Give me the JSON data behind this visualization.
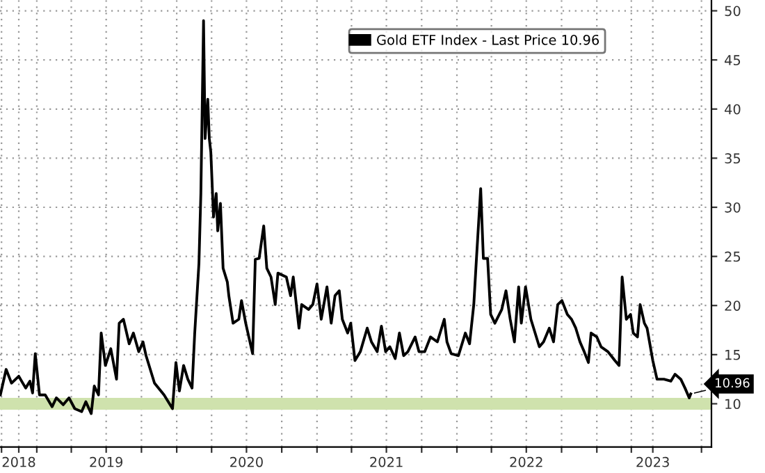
{
  "chart_data": {
    "type": "line",
    "x": [
      "2018-09-28",
      "2018-10-13",
      "2018-10-27",
      "2018-11-15",
      "2018-12-03",
      "2018-12-14",
      "2018-12-21",
      "2018-12-28",
      "2019-01-08",
      "2019-01-23",
      "2019-02-10",
      "2019-02-21",
      "2019-03-11",
      "2019-03-26",
      "2019-04-10",
      "2019-04-28",
      "2019-05-09",
      "2019-05-23",
      "2019-05-31",
      "2019-06-11",
      "2019-06-18",
      "2019-06-29",
      "2019-07-13",
      "2019-07-28",
      "2019-08-04",
      "2019-08-15",
      "2019-08-30",
      "2019-09-10",
      "2019-09-24",
      "2019-10-05",
      "2019-10-13",
      "2019-11-04",
      "2019-11-29",
      "2019-12-21",
      "2019-12-30",
      "2020-01-08",
      "2020-01-19",
      "2020-01-30",
      "2020-02-10",
      "2020-02-17",
      "2020-02-28",
      "2020-03-04",
      "2020-03-11",
      "2020-03-15",
      "2020-03-22",
      "2020-03-26",
      "2020-03-30",
      "2020-04-06",
      "2020-04-13",
      "2020-04-17",
      "2020-04-24",
      "2020-05-01",
      "2020-05-12",
      "2020-05-16",
      "2020-05-27",
      "2020-06-11",
      "2020-06-18",
      "2020-06-29",
      "2020-07-17",
      "2020-07-24",
      "2020-08-03",
      "2020-08-15",
      "2020-08-23",
      "2020-09-03",
      "2020-09-14",
      "2020-09-21",
      "2020-10-13",
      "2020-10-24",
      "2020-10-31",
      "2020-11-15",
      "2020-11-22",
      "2020-12-10",
      "2020-12-21",
      "2021-01-01",
      "2021-01-12",
      "2021-01-27",
      "2021-02-07",
      "2021-02-17",
      "2021-02-28",
      "2021-03-08",
      "2021-03-22",
      "2021-03-30",
      "2021-04-10",
      "2021-04-24",
      "2021-05-12",
      "2021-05-23",
      "2021-06-07",
      "2021-06-18",
      "2021-06-29",
      "2021-07-10",
      "2021-07-24",
      "2021-08-04",
      "2021-08-15",
      "2021-08-26",
      "2021-09-14",
      "2021-09-24",
      "2021-10-09",
      "2021-10-24",
      "2021-11-11",
      "2021-11-29",
      "2021-12-06",
      "2021-12-17",
      "2022-01-05",
      "2022-01-23",
      "2022-02-03",
      "2022-02-14",
      "2022-02-21",
      "2022-03-04",
      "2022-03-11",
      "2022-03-22",
      "2022-03-30",
      "2022-04-10",
      "2022-04-28",
      "2022-05-09",
      "2022-05-20",
      "2022-05-31",
      "2022-06-11",
      "2022-06-18",
      "2022-06-29",
      "2022-07-13",
      "2022-07-24",
      "2022-08-04",
      "2022-08-15",
      "2022-08-30",
      "2022-09-10",
      "2022-09-21",
      "2022-10-02",
      "2022-10-16",
      "2022-10-27",
      "2022-11-07",
      "2022-11-18",
      "2022-11-29",
      "2022-12-10",
      "2022-12-17",
      "2023-01-01",
      "2023-01-12",
      "2023-01-30",
      "2023-02-17",
      "2023-02-28",
      "2023-03-08",
      "2023-03-19",
      "2023-03-30",
      "2023-04-06",
      "2023-04-17",
      "2023-04-24",
      "2023-05-05",
      "2023-05-12",
      "2023-05-27",
      "2023-06-07",
      "2023-06-25",
      "2023-07-13",
      "2023-07-24",
      "2023-08-08",
      "2023-08-19",
      "2023-08-30",
      "2023-09-03"
    ],
    "series": [
      {
        "name": "Gold ETF Index - Last Price 10.96",
        "color": "#000000",
        "values": [
          10.9,
          13.5,
          12.1,
          12.8,
          11.6,
          12.3,
          11.1,
          15.1,
          10.9,
          10.9,
          9.7,
          10.6,
          9.9,
          10.6,
          9.5,
          9.2,
          10.2,
          9.0,
          11.8,
          10.9,
          17.2,
          13.9,
          15.6,
          12.5,
          18.2,
          18.6,
          16.1,
          17.2,
          15.3,
          16.3,
          14.9,
          12.1,
          10.9,
          9.5,
          14.2,
          11.3,
          13.9,
          12.5,
          11.6,
          17.2,
          24.3,
          31.4,
          49.0,
          37.0,
          41.0,
          37.0,
          35.6,
          29.0,
          31.4,
          27.6,
          30.4,
          23.8,
          22.4,
          21.0,
          18.2,
          18.6,
          20.5,
          18.2,
          15.1,
          24.7,
          24.8,
          28.1,
          23.8,
          22.9,
          20.1,
          23.3,
          22.9,
          21.0,
          22.9,
          17.7,
          20.1,
          19.6,
          20.1,
          22.2,
          18.6,
          21.9,
          18.2,
          21.0,
          21.5,
          18.6,
          17.2,
          18.2,
          14.4,
          15.3,
          17.7,
          16.3,
          15.3,
          17.9,
          15.3,
          15.8,
          14.6,
          17.2,
          14.9,
          15.3,
          16.8,
          15.3,
          15.3,
          16.8,
          16.3,
          18.6,
          16.3,
          15.1,
          14.9,
          17.2,
          16.1,
          20.1,
          24.8,
          31.9,
          24.8,
          24.8,
          19.1,
          18.2,
          19.6,
          21.5,
          18.6,
          16.3,
          21.9,
          18.2,
          21.9,
          18.6,
          17.2,
          15.8,
          16.3,
          17.7,
          16.3,
          20.1,
          20.5,
          19.1,
          18.6,
          17.7,
          16.3,
          15.3,
          14.2,
          17.2,
          16.8,
          15.8,
          15.3,
          14.4,
          13.9,
          22.9,
          18.6,
          19.1,
          17.2,
          16.8,
          20.1,
          18.2,
          17.7,
          14.4,
          12.5,
          12.5,
          12.3,
          13.0,
          12.5,
          11.6,
          10.6,
          11.0
        ]
      }
    ],
    "xlim": [
      "2018-09-27",
      "2023-10-27"
    ],
    "ylim": [
      5.6,
      51.1
    ],
    "xticks": [
      {
        "value": "2018-10-01",
        "label": null
      },
      {
        "value": "2018-11-15",
        "label": "2018"
      },
      {
        "value": "2019-01-01",
        "label": null
      },
      {
        "value": "2019-04-01",
        "label": null
      },
      {
        "value": "2019-07-01",
        "label": "2019"
      },
      {
        "value": "2019-10-01",
        "label": null
      },
      {
        "value": "2020-01-01",
        "label": null
      },
      {
        "value": "2020-04-01",
        "label": null
      },
      {
        "value": "2020-07-01",
        "label": "2020"
      },
      {
        "value": "2020-10-01",
        "label": null
      },
      {
        "value": "2021-01-01",
        "label": null
      },
      {
        "value": "2021-04-01",
        "label": null
      },
      {
        "value": "2021-07-01",
        "label": "2021"
      },
      {
        "value": "2021-10-01",
        "label": null
      },
      {
        "value": "2022-01-01",
        "label": null
      },
      {
        "value": "2022-04-01",
        "label": null
      },
      {
        "value": "2022-07-01",
        "label": "2022"
      },
      {
        "value": "2022-10-01",
        "label": null
      },
      {
        "value": "2023-01-01",
        "label": null
      },
      {
        "value": "2023-04-01",
        "label": null
      },
      {
        "value": "2023-05-27",
        "label": "2023"
      },
      {
        "value": "2023-10-01",
        "label": null
      }
    ],
    "yticks": [
      10,
      15,
      20,
      25,
      30,
      35,
      40,
      45,
      50
    ],
    "bands": [
      {
        "axis": "y",
        "from": 9.4,
        "to": 10.6,
        "color": "#cfe2ad"
      }
    ],
    "annotations": [
      {
        "text": "10.96",
        "x": "2023-09-03",
        "y": 11.0
      }
    ],
    "grid": true,
    "legend": "top right",
    "line_style": "solid",
    "marker": "none"
  }
}
